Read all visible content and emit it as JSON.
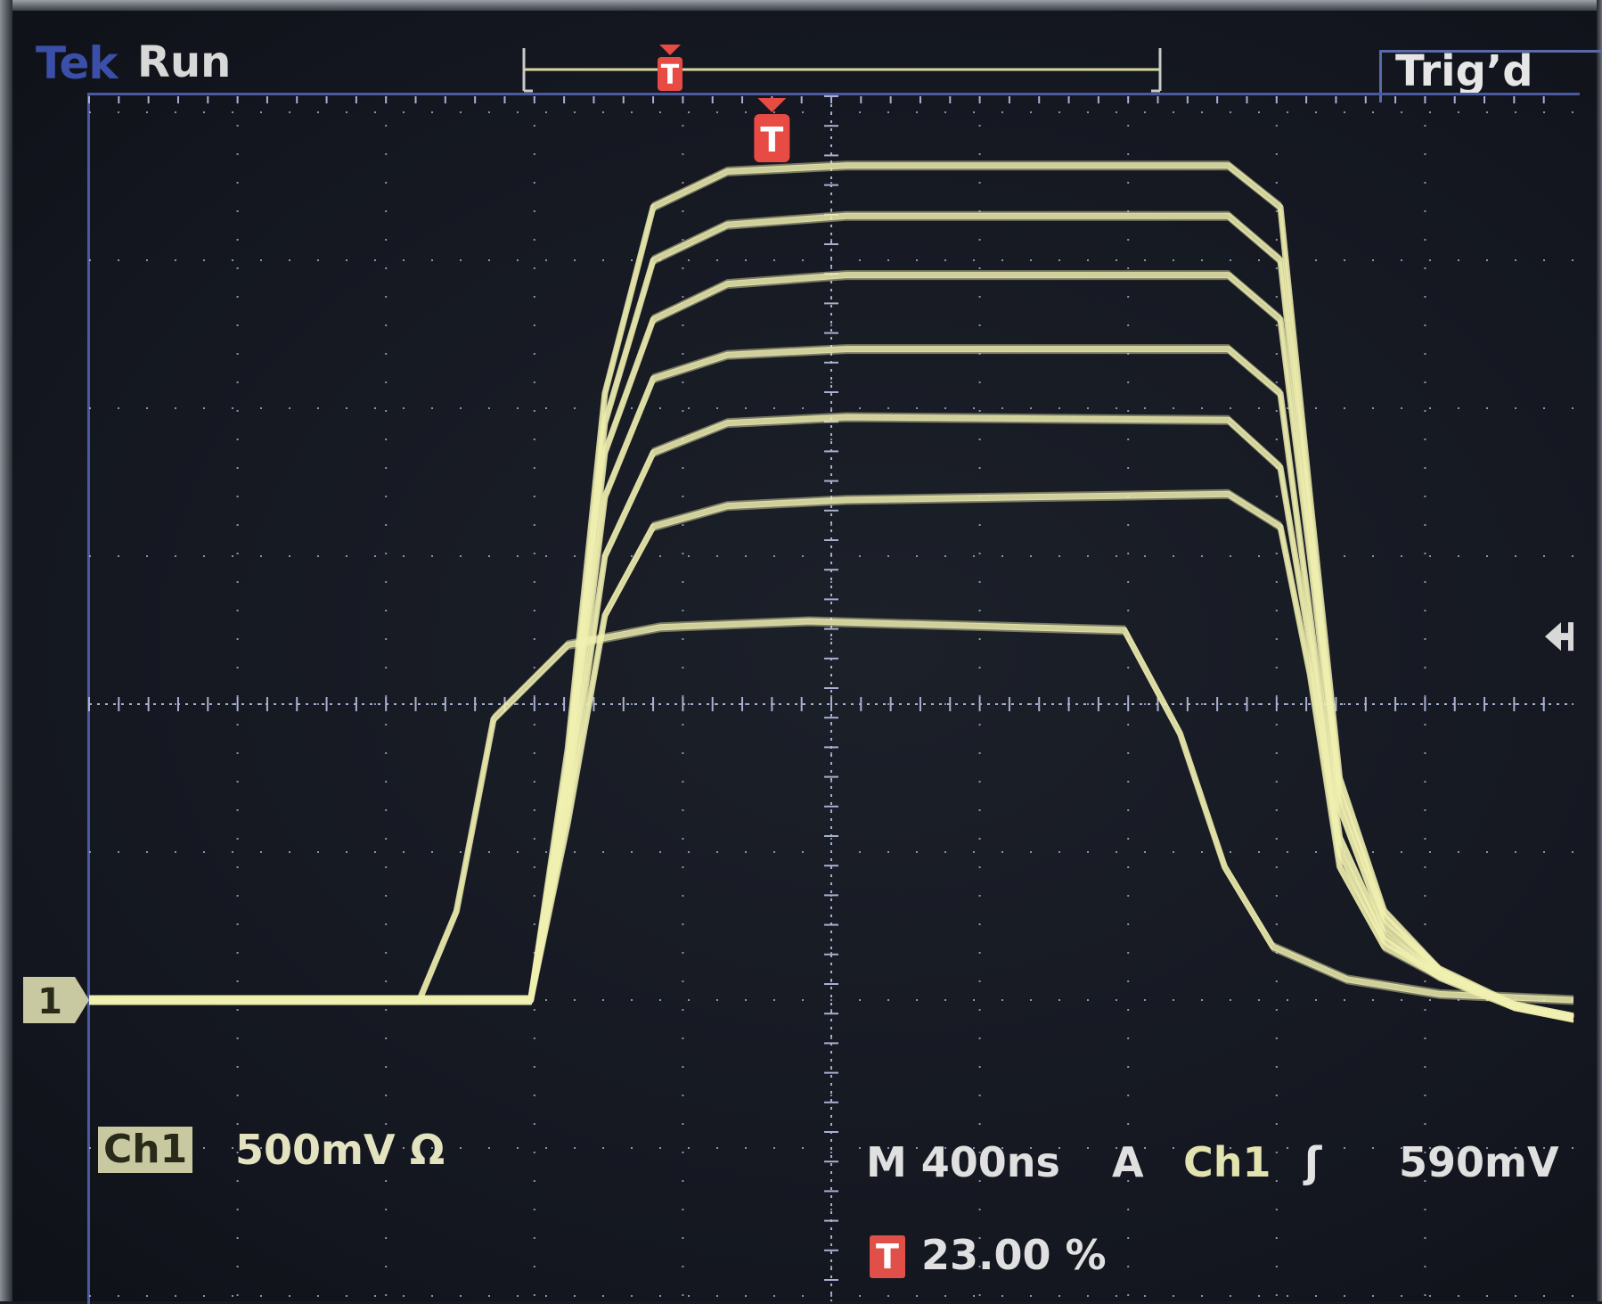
{
  "header": {
    "brand": "Tek",
    "acquisition_state": "Run",
    "trigger_status": "Trig’d"
  },
  "markers": {
    "trigger_marker_label": "T",
    "channel_marker_label": "1"
  },
  "channel": {
    "badge": "Ch1",
    "scale": "500mV",
    "coupling_symbol": "Ω"
  },
  "horizontal": {
    "timebase": "M 400ns"
  },
  "trigger": {
    "mode": "A",
    "source": "Ch1",
    "slope_symbol": "ʃ",
    "level": "590mV",
    "position_icon": "T",
    "position": "23.00 %"
  },
  "colors": {
    "trace": "#f0f0b0",
    "graticule": "#a8b0d0",
    "trigger_marker": "#e84a44",
    "brand": "#3a4fa8",
    "channel_badge": "#c8c9a0"
  },
  "icons": {
    "trigger_marker": "trigger-t-flag-icon",
    "channel_marker": "channel-1-arrow-icon",
    "trigger_level_marker": "left-arrow-icon",
    "rising_slope": "rising-edge-icon"
  },
  "chart_data": {
    "type": "line",
    "title": "",
    "xlabel": "",
    "ylabel": "",
    "x_unit": "s",
    "y_unit": "V",
    "x_per_div": 4e-07,
    "y_per_div": 0.5,
    "xlim": [
      -1.84e-06,
      2.16e-06
    ],
    "ylim": [
      -2.0,
      2.0
    ],
    "grid": true,
    "persistence_display": true,
    "trigger_level": 0.59,
    "series": [
      {
        "x": [
          -1.84e-06,
          -7.9e-07,
          -6.5e-07,
          -5.5e-07,
          -4.5e-07,
          -3.2e-07,
          -1.2e-07,
          2e-07,
          1.23e-06,
          1.37e-06,
          1.45e-06,
          1.53e-06,
          1.65e-06,
          1.8e-06,
          2e-06,
          2.16e-06
        ],
        "y": [
          -1.0,
          -1.0,
          -1.0,
          -0.4,
          0.3,
          0.6,
          0.67,
          0.69,
          0.71,
          0.6,
          0.1,
          -0.55,
          -0.82,
          -0.92,
          -1.02,
          -1.06
        ]
      },
      {
        "x": [
          -1.84e-06,
          -7.9e-07,
          -6.5e-07,
          -5.5e-07,
          -4.5e-07,
          -3.2e-07,
          -1.2e-07,
          2e-07,
          1.23e-06,
          1.37e-06,
          1.45e-06,
          1.53e-06,
          1.65e-06,
          1.8e-06,
          2e-06,
          2.16e-06
        ],
        "y": [
          -1.0,
          -1.0,
          -1.0,
          -0.35,
          0.5,
          0.85,
          0.95,
          0.97,
          0.96,
          0.8,
          0.2,
          -0.5,
          -0.8,
          -0.92,
          -1.02,
          -1.06
        ]
      },
      {
        "x": [
          -1.84e-06,
          -7.9e-07,
          -6.5e-07,
          -5.5e-07,
          -4.5e-07,
          -3.2e-07,
          -1.2e-07,
          2e-07,
          1.23e-06,
          1.37e-06,
          1.45e-06,
          1.53e-06,
          1.65e-06,
          1.8e-06,
          2e-06,
          2.16e-06
        ],
        "y": [
          -1.0,
          -1.0,
          -1.0,
          -0.3,
          0.7,
          1.1,
          1.18,
          1.2,
          1.2,
          1.05,
          0.3,
          -0.45,
          -0.78,
          -0.92,
          -1.02,
          -1.06
        ]
      },
      {
        "x": [
          -1.84e-06,
          -7.9e-07,
          -6.5e-07,
          -5.5e-07,
          -4.5e-07,
          -3.2e-07,
          -1.2e-07,
          2e-07,
          1.23e-06,
          1.37e-06,
          1.45e-06,
          1.53e-06,
          1.65e-06,
          1.8e-06,
          2e-06,
          2.16e-06
        ],
        "y": [
          -1.0,
          -1.0,
          -1.0,
          -0.25,
          0.85,
          1.3,
          1.42,
          1.45,
          1.45,
          1.3,
          0.5,
          -0.35,
          -0.75,
          -0.9,
          -1.02,
          -1.06
        ]
      },
      {
        "x": [
          -1.84e-06,
          -7.9e-07,
          -6.5e-07,
          -5.5e-07,
          -4.5e-07,
          -3.2e-07,
          -1.2e-07,
          2e-07,
          1.23e-06,
          1.37e-06,
          1.45e-06,
          1.53e-06,
          1.65e-06,
          1.8e-06,
          2e-06,
          2.16e-06
        ],
        "y": [
          -1.0,
          -1.0,
          -1.0,
          -0.2,
          0.95,
          1.5,
          1.62,
          1.65,
          1.65,
          1.5,
          0.6,
          -0.3,
          -0.72,
          -0.9,
          -1.02,
          -1.06
        ]
      },
      {
        "x": [
          -1.84e-06,
          -7.9e-07,
          -6.5e-07,
          -5.5e-07,
          -4.5e-07,
          -3.2e-07,
          -1.2e-07,
          2e-07,
          1.23e-06,
          1.37e-06,
          1.45e-06,
          1.53e-06,
          1.65e-06,
          1.8e-06,
          2e-06,
          2.16e-06
        ],
        "y": [
          -1.0,
          -1.0,
          -1.0,
          -0.15,
          1.05,
          1.68,
          1.8,
          1.82,
          1.82,
          1.68,
          0.7,
          -0.25,
          -0.7,
          -0.9,
          -1.02,
          -1.06
        ]
      },
      {
        "x": [
          -1.84e-06,
          -9.5e-07,
          -8.5e-07,
          -7.5e-07,
          -5.5e-07,
          -3e-07,
          1e-07,
          9.5e-07,
          1.1e-06,
          1.22e-06,
          1.35e-06,
          1.55e-06,
          1.8e-06,
          2.16e-06
        ],
        "y": [
          -1.0,
          -1.0,
          -0.7,
          -0.05,
          0.2,
          0.26,
          0.28,
          0.25,
          -0.1,
          -0.55,
          -0.82,
          -0.93,
          -0.98,
          -1.0
        ]
      }
    ]
  }
}
